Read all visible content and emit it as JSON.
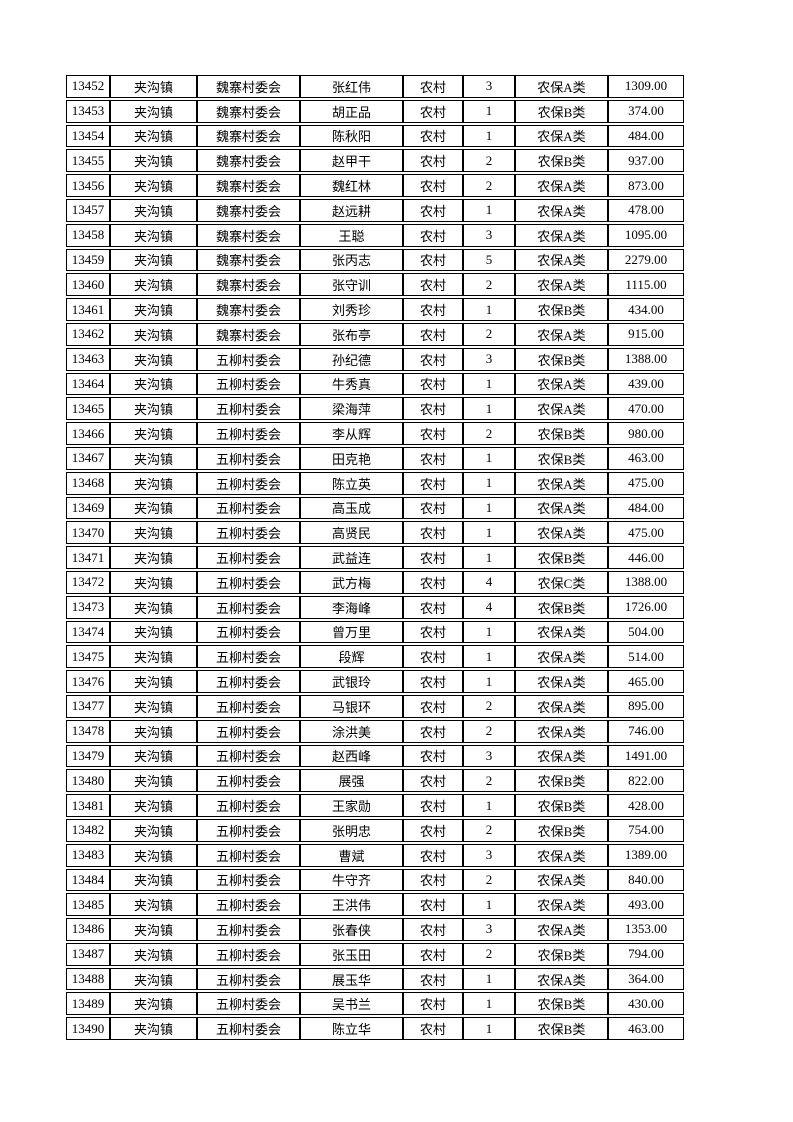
{
  "page": {
    "background_color": "#ffffff",
    "text_color": "#000000",
    "border_color": "#000000"
  },
  "table": {
    "columns": [
      "id",
      "town",
      "village",
      "name",
      "residence",
      "count",
      "category",
      "amount"
    ],
    "rows": [
      {
        "id": "13452",
        "town": "夹沟镇",
        "village": "魏寨村委会",
        "name": "张红伟",
        "residence": "农村",
        "count": "3",
        "category": "农保A类",
        "amount": "1309.00"
      },
      {
        "id": "13453",
        "town": "夹沟镇",
        "village": "魏寨村委会",
        "name": "胡正品",
        "residence": "农村",
        "count": "1",
        "category": "农保B类",
        "amount": "374.00"
      },
      {
        "id": "13454",
        "town": "夹沟镇",
        "village": "魏寨村委会",
        "name": "陈秋阳",
        "residence": "农村",
        "count": "1",
        "category": "农保A类",
        "amount": "484.00"
      },
      {
        "id": "13455",
        "town": "夹沟镇",
        "village": "魏寨村委会",
        "name": "赵甲干",
        "residence": "农村",
        "count": "2",
        "category": "农保B类",
        "amount": "937.00"
      },
      {
        "id": "13456",
        "town": "夹沟镇",
        "village": "魏寨村委会",
        "name": "魏红林",
        "residence": "农村",
        "count": "2",
        "category": "农保A类",
        "amount": "873.00"
      },
      {
        "id": "13457",
        "town": "夹沟镇",
        "village": "魏寨村委会",
        "name": "赵远耕",
        "residence": "农村",
        "count": "1",
        "category": "农保A类",
        "amount": "478.00"
      },
      {
        "id": "13458",
        "town": "夹沟镇",
        "village": "魏寨村委会",
        "name": "王聪",
        "residence": "农村",
        "count": "3",
        "category": "农保A类",
        "amount": "1095.00"
      },
      {
        "id": "13459",
        "town": "夹沟镇",
        "village": "魏寨村委会",
        "name": "张丙志",
        "residence": "农村",
        "count": "5",
        "category": "农保A类",
        "amount": "2279.00"
      },
      {
        "id": "13460",
        "town": "夹沟镇",
        "village": "魏寨村委会",
        "name": "张守训",
        "residence": "农村",
        "count": "2",
        "category": "农保A类",
        "amount": "1115.00"
      },
      {
        "id": "13461",
        "town": "夹沟镇",
        "village": "魏寨村委会",
        "name": "刘秀珍",
        "residence": "农村",
        "count": "1",
        "category": "农保B类",
        "amount": "434.00"
      },
      {
        "id": "13462",
        "town": "夹沟镇",
        "village": "魏寨村委会",
        "name": "张布亭",
        "residence": "农村",
        "count": "2",
        "category": "农保A类",
        "amount": "915.00"
      },
      {
        "id": "13463",
        "town": "夹沟镇",
        "village": "五柳村委会",
        "name": "孙纪德",
        "residence": "农村",
        "count": "3",
        "category": "农保B类",
        "amount": "1388.00"
      },
      {
        "id": "13464",
        "town": "夹沟镇",
        "village": "五柳村委会",
        "name": "牛秀真",
        "residence": "农村",
        "count": "1",
        "category": "农保A类",
        "amount": "439.00"
      },
      {
        "id": "13465",
        "town": "夹沟镇",
        "village": "五柳村委会",
        "name": "梁海萍",
        "residence": "农村",
        "count": "1",
        "category": "农保A类",
        "amount": "470.00"
      },
      {
        "id": "13466",
        "town": "夹沟镇",
        "village": "五柳村委会",
        "name": "李从辉",
        "residence": "农村",
        "count": "2",
        "category": "农保B类",
        "amount": "980.00"
      },
      {
        "id": "13467",
        "town": "夹沟镇",
        "village": "五柳村委会",
        "name": "田克艳",
        "residence": "农村",
        "count": "1",
        "category": "农保B类",
        "amount": "463.00"
      },
      {
        "id": "13468",
        "town": "夹沟镇",
        "village": "五柳村委会",
        "name": "陈立英",
        "residence": "农村",
        "count": "1",
        "category": "农保A类",
        "amount": "475.00"
      },
      {
        "id": "13469",
        "town": "夹沟镇",
        "village": "五柳村委会",
        "name": "高玉成",
        "residence": "农村",
        "count": "1",
        "category": "农保A类",
        "amount": "484.00"
      },
      {
        "id": "13470",
        "town": "夹沟镇",
        "village": "五柳村委会",
        "name": "高贤民",
        "residence": "农村",
        "count": "1",
        "category": "农保A类",
        "amount": "475.00"
      },
      {
        "id": "13471",
        "town": "夹沟镇",
        "village": "五柳村委会",
        "name": "武益连",
        "residence": "农村",
        "count": "1",
        "category": "农保B类",
        "amount": "446.00"
      },
      {
        "id": "13472",
        "town": "夹沟镇",
        "village": "五柳村委会",
        "name": "武方梅",
        "residence": "农村",
        "count": "4",
        "category": "农保C类",
        "amount": "1388.00"
      },
      {
        "id": "13473",
        "town": "夹沟镇",
        "village": "五柳村委会",
        "name": "李海峰",
        "residence": "农村",
        "count": "4",
        "category": "农保B类",
        "amount": "1726.00"
      },
      {
        "id": "13474",
        "town": "夹沟镇",
        "village": "五柳村委会",
        "name": "曾万里",
        "residence": "农村",
        "count": "1",
        "category": "农保A类",
        "amount": "504.00"
      },
      {
        "id": "13475",
        "town": "夹沟镇",
        "village": "五柳村委会",
        "name": "段辉",
        "residence": "农村",
        "count": "1",
        "category": "农保A类",
        "amount": "514.00"
      },
      {
        "id": "13476",
        "town": "夹沟镇",
        "village": "五柳村委会",
        "name": "武银玲",
        "residence": "农村",
        "count": "1",
        "category": "农保A类",
        "amount": "465.00"
      },
      {
        "id": "13477",
        "town": "夹沟镇",
        "village": "五柳村委会",
        "name": "马银环",
        "residence": "农村",
        "count": "2",
        "category": "农保A类",
        "amount": "895.00"
      },
      {
        "id": "13478",
        "town": "夹沟镇",
        "village": "五柳村委会",
        "name": "涂洪美",
        "residence": "农村",
        "count": "2",
        "category": "农保A类",
        "amount": "746.00"
      },
      {
        "id": "13479",
        "town": "夹沟镇",
        "village": "五柳村委会",
        "name": "赵西峰",
        "residence": "农村",
        "count": "3",
        "category": "农保A类",
        "amount": "1491.00"
      },
      {
        "id": "13480",
        "town": "夹沟镇",
        "village": "五柳村委会",
        "name": "展强",
        "residence": "农村",
        "count": "2",
        "category": "农保B类",
        "amount": "822.00"
      },
      {
        "id": "13481",
        "town": "夹沟镇",
        "village": "五柳村委会",
        "name": "王家勋",
        "residence": "农村",
        "count": "1",
        "category": "农保B类",
        "amount": "428.00"
      },
      {
        "id": "13482",
        "town": "夹沟镇",
        "village": "五柳村委会",
        "name": "张明忠",
        "residence": "农村",
        "count": "2",
        "category": "农保B类",
        "amount": "754.00"
      },
      {
        "id": "13483",
        "town": "夹沟镇",
        "village": "五柳村委会",
        "name": "曹斌",
        "residence": "农村",
        "count": "3",
        "category": "农保A类",
        "amount": "1389.00"
      },
      {
        "id": "13484",
        "town": "夹沟镇",
        "village": "五柳村委会",
        "name": "牛守齐",
        "residence": "农村",
        "count": "2",
        "category": "农保A类",
        "amount": "840.00"
      },
      {
        "id": "13485",
        "town": "夹沟镇",
        "village": "五柳村委会",
        "name": "王洪伟",
        "residence": "农村",
        "count": "1",
        "category": "农保A类",
        "amount": "493.00"
      },
      {
        "id": "13486",
        "town": "夹沟镇",
        "village": "五柳村委会",
        "name": "张春侠",
        "residence": "农村",
        "count": "3",
        "category": "农保A类",
        "amount": "1353.00"
      },
      {
        "id": "13487",
        "town": "夹沟镇",
        "village": "五柳村委会",
        "name": "张玉田",
        "residence": "农村",
        "count": "2",
        "category": "农保B类",
        "amount": "794.00"
      },
      {
        "id": "13488",
        "town": "夹沟镇",
        "village": "五柳村委会",
        "name": "展玉华",
        "residence": "农村",
        "count": "1",
        "category": "农保A类",
        "amount": "364.00"
      },
      {
        "id": "13489",
        "town": "夹沟镇",
        "village": "五柳村委会",
        "name": "吴书兰",
        "residence": "农村",
        "count": "1",
        "category": "农保B类",
        "amount": "430.00"
      },
      {
        "id": "13490",
        "town": "夹沟镇",
        "village": "五柳村委会",
        "name": "陈立华",
        "residence": "农村",
        "count": "1",
        "category": "农保B类",
        "amount": "463.00"
      }
    ]
  }
}
